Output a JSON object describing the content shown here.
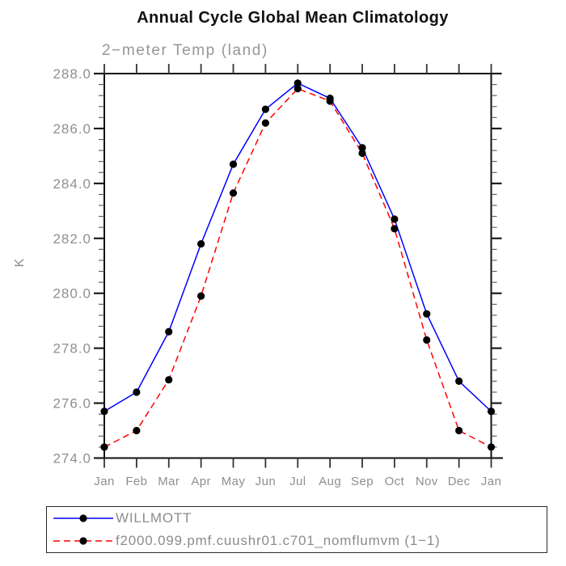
{
  "title": "Annual Cycle Global Mean Climatology",
  "subtitle": "2−meter Temp (land)",
  "y_axis_label": "K",
  "colors": {
    "willmott_line": "#0000ff",
    "model_line": "#ff0000",
    "marker": "#000000",
    "frame": "#111111",
    "gray_text": "#8f8f8f"
  },
  "legend": {
    "position": "bottom-left",
    "entries": [
      {
        "label": "WILLMOTT",
        "line_style": "solid",
        "color": "#0000ff",
        "marker": "filled-circle"
      },
      {
        "label": "f2000.099.pmf.cuushr01.c701_nomflumvm (1−1)",
        "line_style": "dashed",
        "color": "#ff0000",
        "marker": "filled-circle"
      }
    ]
  },
  "chart_data": {
    "type": "line",
    "title": "Annual Cycle Global Mean Climatology",
    "subtitle": "2−meter Temp (land)",
    "xlabel": "",
    "ylabel": "K",
    "x": [
      "Jan",
      "Feb",
      "Mar",
      "Apr",
      "May",
      "Jun",
      "Jul",
      "Aug",
      "Sep",
      "Oct",
      "Nov",
      "Dec",
      "Jan"
    ],
    "series": [
      {
        "name": "WILLMOTT",
        "color": "#0000ff",
        "style": "solid",
        "marker": "filled-circle",
        "values": [
          275.7,
          276.4,
          278.6,
          281.8,
          284.7,
          286.7,
          287.65,
          287.1,
          285.3,
          282.7,
          279.25,
          276.8,
          275.7
        ]
      },
      {
        "name": "f2000.099.pmf.cuushr01.c701_nomflumvm (1−1)",
        "color": "#ff0000",
        "style": "dashed",
        "marker": "filled-circle",
        "values": [
          274.4,
          275.0,
          276.85,
          279.9,
          283.65,
          286.2,
          287.45,
          287.0,
          285.1,
          282.35,
          278.3,
          275.0,
          274.4
        ]
      }
    ],
    "ylim": [
      274.0,
      288.0
    ],
    "ytick_labels": [
      "274.0",
      "276.0",
      "278.0",
      "280.0",
      "282.0",
      "284.0",
      "286.0",
      "288.0"
    ],
    "ytick_major_step": 2.0,
    "ytick_minor_step": 0.4,
    "grid": "off",
    "legend_position": "bottom-left"
  }
}
